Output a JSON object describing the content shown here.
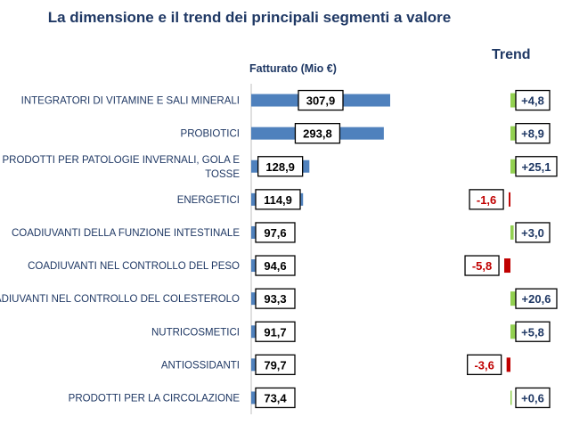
{
  "title": "La dimensione e il trend dei principali segmenti a valore",
  "value_header": "Fatturato (Mio €)",
  "trend_header": "Trend",
  "colors": {
    "title": "#1f3864",
    "bar": "#4f81bd",
    "trend_positive": "#92d050",
    "trend_negative": "#c00000",
    "label_text": "#1f3864",
    "negative_text": "#c00000"
  },
  "chart_data": [
    {
      "type": "bar",
      "orientation": "horizontal",
      "title": "La dimensione e il trend dei principali segmenti a valore",
      "xlabel": "Fatturato (Mio €)",
      "ylabel": "",
      "categories": [
        "INTEGRATORI DI VITAMINE E SALI MINERALI",
        "PROBIOTICI",
        "PRODOTTI PER PATOLOGIE INVERNALI, GOLA E TOSSE",
        "ENERGETICI",
        "COADIUVANTI DELLA FUNZIONE INTESTINALE",
        "COADIUVANTI NEL CONTROLLO DEL PESO",
        "COADIUVANTI NEL CONTROLLO DEL COLESTEROLO",
        "NUTRICOSMETICI",
        "ANTIOSSIDANTI",
        "PRODOTTI PER LA CIRCOLAZIONE"
      ],
      "values": [
        307.9,
        293.8,
        128.9,
        114.9,
        97.6,
        94.6,
        93.3,
        91.7,
        79.7,
        73.4
      ],
      "value_labels": [
        "307,9",
        "293,8",
        "128,9",
        "114,9",
        "97,6",
        "94,6",
        "93,3",
        "91,7",
        "79,7",
        "73,4"
      ],
      "grid": false,
      "legend": "none"
    },
    {
      "type": "bar",
      "orientation": "horizontal",
      "title": "Trend",
      "categories": [
        "INTEGRATORI DI VITAMINE E SALI MINERALI",
        "PROBIOTICI",
        "PRODOTTI PER PATOLOGIE INVERNALI, GOLA E TOSSE",
        "ENERGETICI",
        "COADIUVANTI DELLA FUNZIONE INTESTINALE",
        "COADIUVANTI NEL CONTROLLO DEL PESO",
        "COADIUVANTI NEL CONTROLLO DEL COLESTEROLO",
        "NUTRICOSMETICI",
        "ANTIOSSIDANTI",
        "PRODOTTI PER LA CIRCOLAZIONE"
      ],
      "values": [
        4.8,
        8.9,
        25.1,
        -1.6,
        3.0,
        -5.8,
        20.6,
        5.8,
        -3.6,
        0.6
      ],
      "value_labels": [
        "+4,8",
        "+8,9",
        "+25,1",
        "-1,6",
        "+3,0",
        "-5,8",
        "+20,6",
        "+5,8",
        "-3,6",
        "+0,6"
      ],
      "grid": false,
      "legend": "none"
    }
  ]
}
